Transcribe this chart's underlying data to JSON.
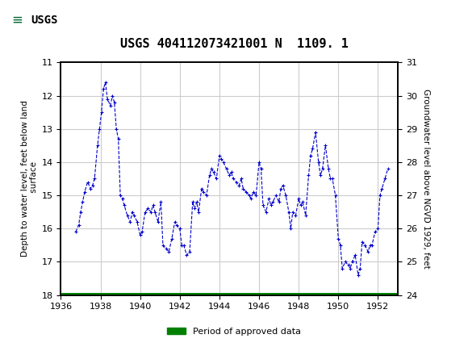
{
  "title": "USGS 404112073421001 N  1109. 1",
  "left_ylabel": "Depth to water level, feet below land\n surface",
  "right_ylabel": "Groundwater level above NGVD 1929, feet",
  "xlim": [
    1936,
    1953
  ],
  "ylim_left": [
    18.0,
    11.0
  ],
  "ylim_right": [
    24.0,
    31.0
  ],
  "yticks_left": [
    11.0,
    12.0,
    13.0,
    14.0,
    15.0,
    16.0,
    17.0,
    18.0
  ],
  "yticks_right": [
    24.0,
    25.0,
    26.0,
    27.0,
    28.0,
    29.0,
    30.0,
    31.0
  ],
  "xticks": [
    1936,
    1938,
    1940,
    1942,
    1944,
    1946,
    1948,
    1950,
    1952
  ],
  "line_color": "#0000CC",
  "green_bar_color": "#008000",
  "header_color": "#006633",
  "background_color": "#ffffff",
  "grid_color": "#cccccc",
  "legend_label": "Period of approved data",
  "data_x": [
    1936.75,
    1936.9,
    1937.0,
    1937.1,
    1937.2,
    1937.35,
    1937.5,
    1937.6,
    1937.7,
    1937.85,
    1937.95,
    1938.05,
    1938.15,
    1938.25,
    1938.35,
    1938.5,
    1938.6,
    1938.7,
    1938.8,
    1938.9,
    1939.0,
    1939.1,
    1939.2,
    1939.35,
    1939.5,
    1939.6,
    1939.7,
    1939.85,
    1940.0,
    1940.1,
    1940.25,
    1940.4,
    1940.55,
    1940.65,
    1940.75,
    1940.9,
    1941.05,
    1941.15,
    1941.3,
    1941.45,
    1941.6,
    1941.75,
    1941.85,
    1942.0,
    1942.1,
    1942.2,
    1942.35,
    1942.5,
    1942.65,
    1942.75,
    1942.85,
    1942.95,
    1943.1,
    1943.2,
    1943.35,
    1943.5,
    1943.6,
    1943.7,
    1943.85,
    1944.0,
    1944.1,
    1944.2,
    1944.35,
    1944.5,
    1944.6,
    1944.7,
    1944.85,
    1945.0,
    1945.1,
    1945.2,
    1945.35,
    1945.5,
    1945.6,
    1945.7,
    1945.85,
    1946.0,
    1946.1,
    1946.2,
    1946.35,
    1946.5,
    1946.6,
    1946.7,
    1946.85,
    1947.0,
    1947.1,
    1947.2,
    1947.35,
    1947.5,
    1947.6,
    1947.7,
    1947.85,
    1948.0,
    1948.1,
    1948.2,
    1948.35,
    1948.5,
    1948.6,
    1948.7,
    1948.85,
    1949.0,
    1949.1,
    1949.2,
    1949.35,
    1949.5,
    1949.6,
    1949.7,
    1949.85,
    1950.0,
    1950.1,
    1950.2,
    1950.35,
    1950.5,
    1950.6,
    1950.7,
    1950.85,
    1951.0,
    1951.1,
    1951.2,
    1951.35,
    1951.5,
    1951.6,
    1951.7,
    1951.85,
    1952.0,
    1952.1,
    1952.2,
    1952.35,
    1952.5
  ],
  "data_y": [
    16.1,
    15.9,
    15.5,
    15.2,
    14.9,
    14.6,
    14.8,
    14.7,
    14.5,
    13.5,
    13.0,
    12.5,
    11.8,
    11.6,
    12.1,
    12.3,
    12.0,
    12.2,
    13.0,
    13.3,
    15.0,
    15.1,
    15.3,
    15.6,
    15.8,
    15.5,
    15.6,
    15.8,
    16.2,
    16.1,
    15.5,
    15.4,
    15.5,
    15.3,
    15.5,
    15.8,
    15.2,
    16.5,
    16.6,
    16.7,
    16.3,
    15.8,
    15.9,
    16.0,
    16.5,
    16.5,
    16.8,
    16.7,
    15.2,
    15.4,
    15.2,
    15.5,
    14.8,
    14.9,
    15.0,
    14.4,
    14.2,
    14.3,
    14.5,
    13.8,
    13.9,
    14.0,
    14.2,
    14.4,
    14.3,
    14.5,
    14.6,
    14.7,
    14.5,
    14.8,
    14.9,
    15.0,
    15.1,
    14.9,
    15.0,
    14.0,
    14.2,
    15.3,
    15.5,
    15.1,
    15.3,
    15.2,
    15.0,
    15.2,
    14.8,
    14.7,
    15.0,
    15.5,
    16.0,
    15.5,
    15.6,
    15.1,
    15.3,
    15.2,
    15.6,
    14.4,
    13.8,
    13.6,
    13.1,
    14.0,
    14.4,
    14.2,
    13.5,
    14.2,
    14.5,
    14.5,
    15.0,
    16.3,
    16.5,
    17.2,
    17.0,
    17.1,
    17.2,
    17.0,
    16.8,
    17.4,
    17.2,
    16.4,
    16.5,
    16.7,
    16.5,
    16.5,
    16.1,
    16.0,
    15.0,
    14.8,
    14.5,
    14.2
  ]
}
